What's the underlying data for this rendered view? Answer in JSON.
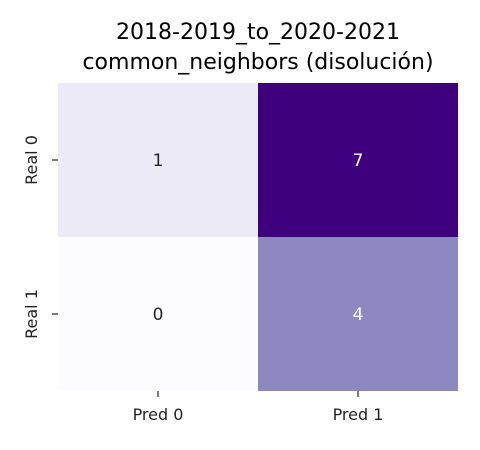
{
  "chart_data": {
    "type": "heatmap",
    "title_lines": [
      "2018-2019_to_2020-2021",
      "common_neighbors (disolución)"
    ],
    "x_categories": [
      "Pred 0",
      "Pred 1"
    ],
    "y_categories": [
      "Real 0",
      "Real 1"
    ],
    "values": [
      [
        1,
        7
      ],
      [
        0,
        4
      ]
    ],
    "value_range": [
      0,
      7
    ],
    "colormap": "Purples",
    "colors": {
      "low": "#fcfbfd",
      "high": "#3f007d",
      "text_dark": "#262626",
      "text_light": "#ffffff"
    },
    "grid": false,
    "legend": "none"
  }
}
